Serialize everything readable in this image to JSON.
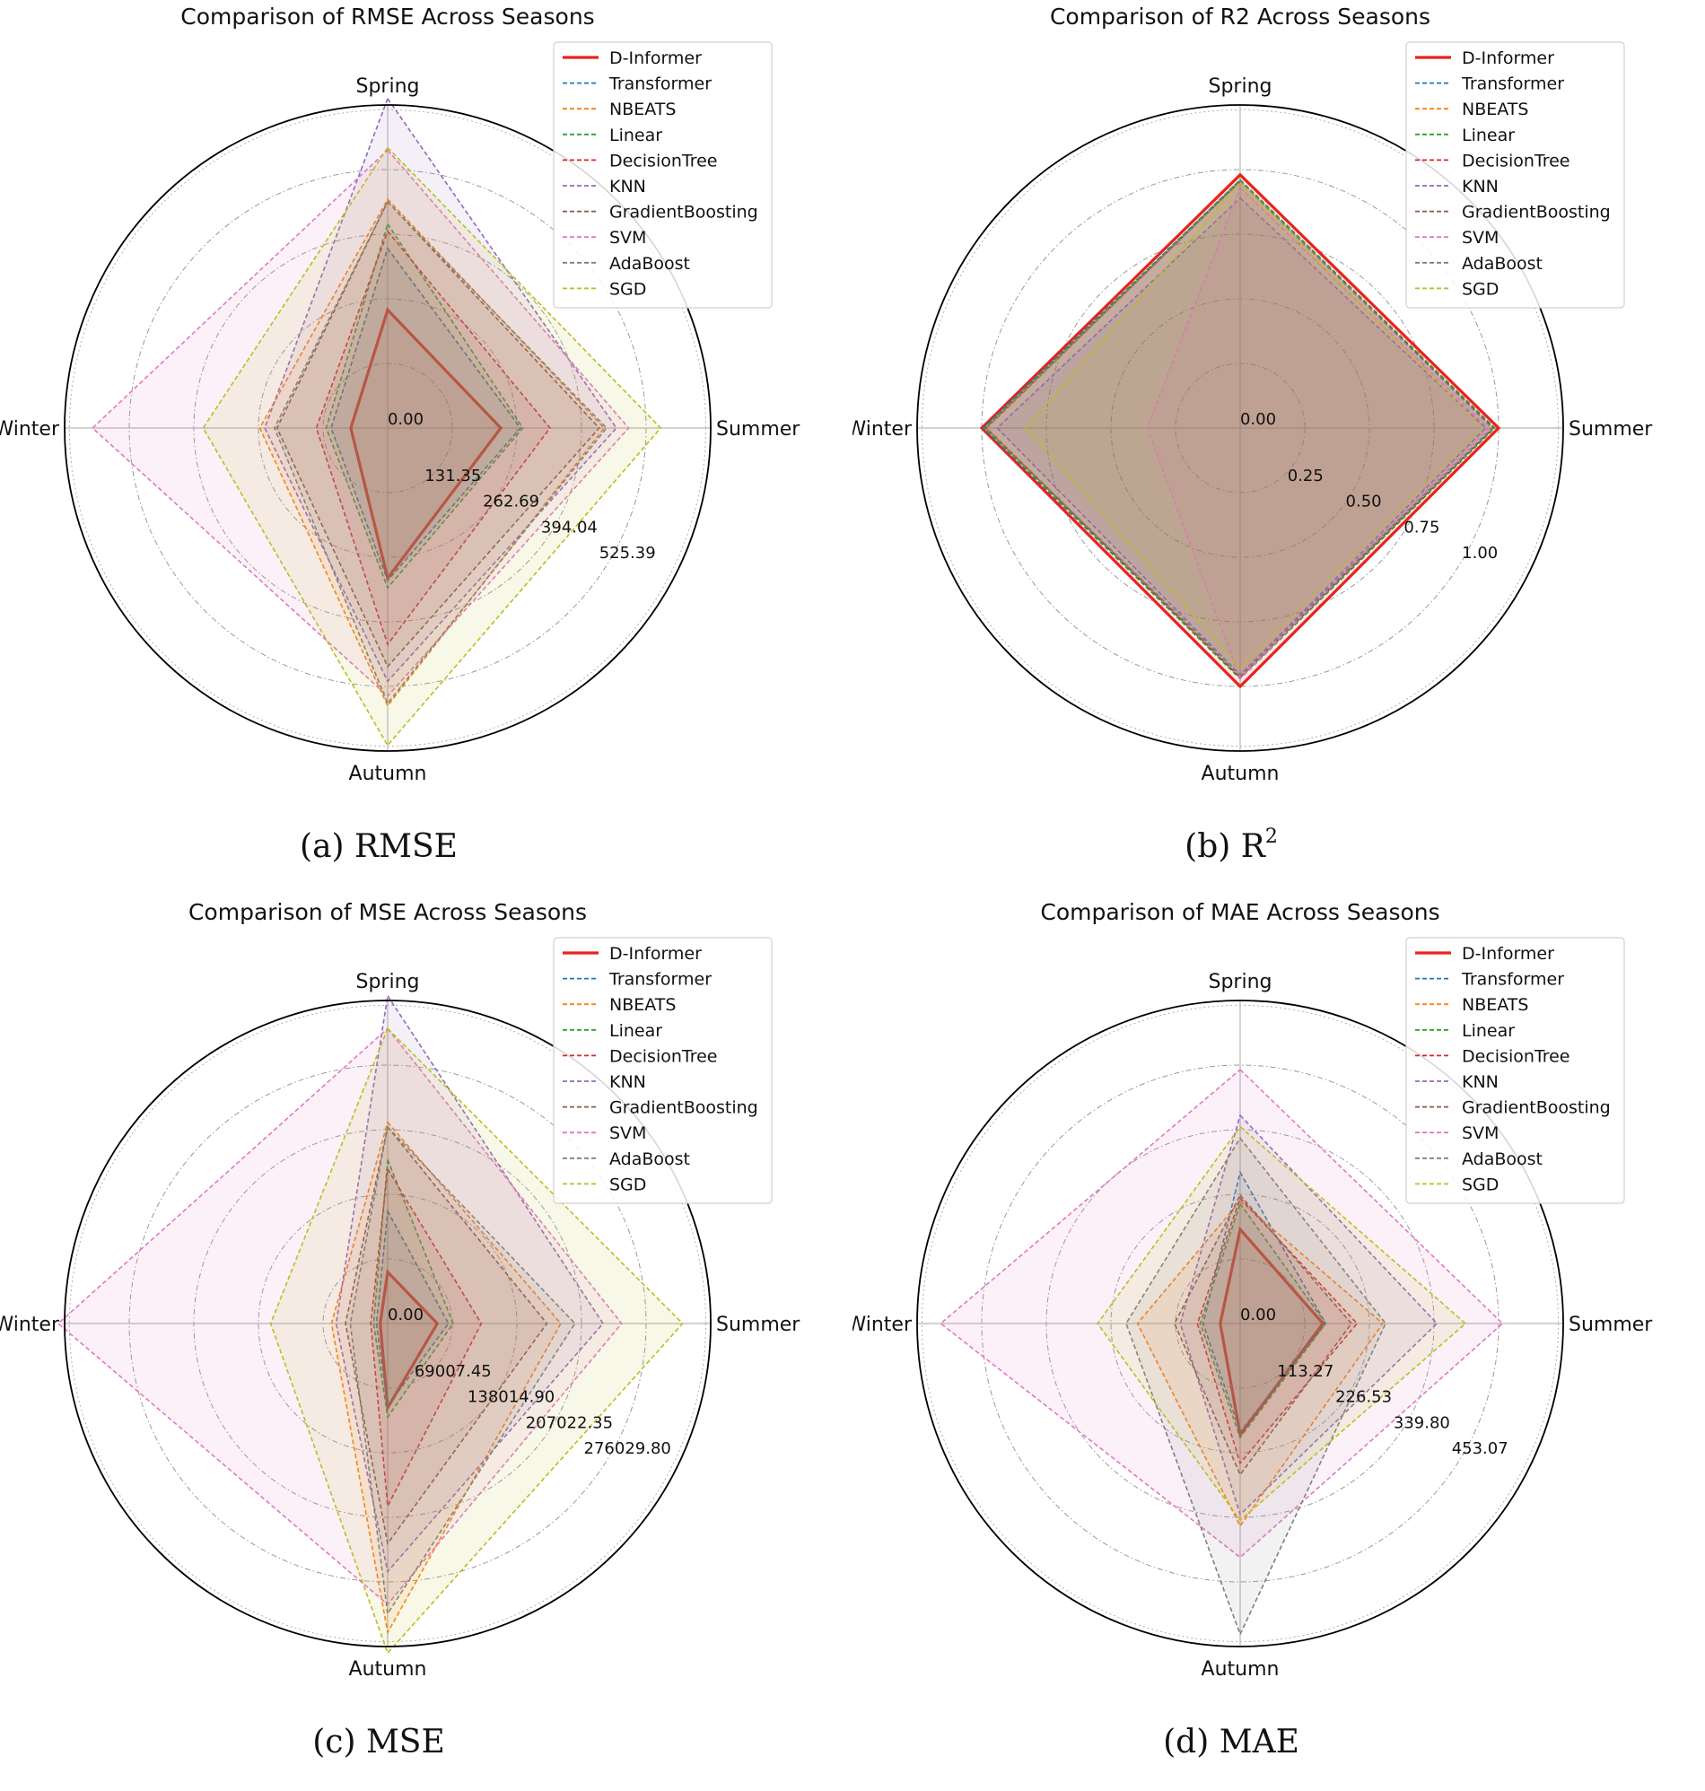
{
  "colors": {
    "D-Informer": "#e8231b",
    "Transformer": "#1f77b4",
    "NBEATS": "#ff7f0e",
    "Linear": "#2ca02c",
    "DecisionTree": "#d62728",
    "KNN": "#9467bd",
    "GradientBoosting": "#8c564b",
    "SVM": "#e377c2",
    "AdaBoost": "#7f7f7f",
    "SGD": "#bcbd22"
  },
  "chart_data": [
    {
      "type": "radar",
      "title": "Comparison of RMSE Across Seasons",
      "caption": "(a) RMSE",
      "caption_sup": "",
      "axes": [
        "Spring",
        "Summer",
        "Autumn",
        "Winter"
      ],
      "rmax": 656.74,
      "tick_values": [
        0,
        131.35,
        262.69,
        394.04,
        525.39
      ],
      "tick_labels": [
        "0.00",
        "131.35",
        "262.69",
        "394.04",
        "525.39"
      ],
      "legend_position": "top-right",
      "series": [
        {
          "name": "D-Informer",
          "values": [
            240,
            230,
            305,
            75
          ]
        },
        {
          "name": "Transformer",
          "values": [
            365,
            270,
            310,
            115
          ]
        },
        {
          "name": "NBEATS",
          "values": [
            465,
            440,
            565,
            260
          ]
        },
        {
          "name": "Linear",
          "values": [
            415,
            275,
            325,
            125
          ]
        },
        {
          "name": "DecisionTree",
          "values": [
            400,
            330,
            440,
            145
          ]
        },
        {
          "name": "KNN",
          "values": [
            675,
            465,
            515,
            250
          ]
        },
        {
          "name": "GradientBoosting",
          "values": [
            460,
            430,
            485,
            225
          ]
        },
        {
          "name": "SVM",
          "values": [
            565,
            490,
            545,
            600
          ]
        },
        {
          "name": "AdaBoost",
          "values": [
            460,
            445,
            560,
            230
          ]
        },
        {
          "name": "SGD",
          "values": [
            570,
            555,
            645,
            375
          ]
        }
      ]
    },
    {
      "type": "radar",
      "title": "Comparison of R2 Across Seasons",
      "caption": "(b) R",
      "caption_sup": "2",
      "axes": [
        "Spring",
        "Summer",
        "Autumn",
        "Winter"
      ],
      "rmax": 1.25,
      "tick_values": [
        0,
        0.25,
        0.5,
        0.75,
        1.0
      ],
      "tick_labels": [
        "0.00",
        "0.25",
        "0.50",
        "0.75",
        "1.00"
      ],
      "legend_position": "top-right",
      "series": [
        {
          "name": "D-Informer",
          "values": [
            0.98,
            1.0,
            1.0,
            1.0
          ]
        },
        {
          "name": "Transformer",
          "values": [
            0.96,
            0.985,
            0.97,
            0.995
          ]
        },
        {
          "name": "NBEATS",
          "values": [
            0.955,
            0.975,
            0.965,
            0.98
          ]
        },
        {
          "name": "Linear",
          "values": [
            0.96,
            0.985,
            0.97,
            0.99
          ]
        },
        {
          "name": "DecisionTree",
          "values": [
            0.955,
            0.98,
            0.965,
            0.985
          ]
        },
        {
          "name": "KNN",
          "values": [
            0.89,
            0.95,
            0.955,
            0.94
          ]
        },
        {
          "name": "GradientBoosting",
          "values": [
            0.955,
            0.98,
            0.965,
            0.985
          ]
        },
        {
          "name": "SVM",
          "values": [
            0.93,
            0.96,
            0.97,
            0.36
          ]
        },
        {
          "name": "AdaBoost",
          "values": [
            0.955,
            0.975,
            0.955,
            0.985
          ]
        },
        {
          "name": "SGD",
          "values": [
            0.95,
            0.94,
            0.93,
            0.83
          ]
        }
      ]
    },
    {
      "type": "radar",
      "title": "Comparison of MSE Across Seasons",
      "caption": "(c) MSE",
      "caption_sup": "",
      "axes": [
        "Spring",
        "Summer",
        "Autumn",
        "Winter"
      ],
      "rmax": 345037.25,
      "tick_values": [
        0,
        69007.45,
        138014.9,
        207022.35,
        276029.8
      ],
      "tick_labels": [
        "0.00",
        "69007.45",
        "138014.90",
        "207022.35",
        "276029.80"
      ],
      "legend_position": "top-right",
      "series": [
        {
          "name": "D-Informer",
          "values": [
            55000,
            53000,
            90000,
            8000
          ]
        },
        {
          "name": "Transformer",
          "values": [
            120000,
            65000,
            88000,
            12000
          ]
        },
        {
          "name": "NBEATS",
          "values": [
            215000,
            185000,
            330000,
            60000
          ]
        },
        {
          "name": "Linear",
          "values": [
            175000,
            70000,
            100000,
            15000
          ]
        },
        {
          "name": "DecisionTree",
          "values": [
            165000,
            100000,
            195000,
            18000
          ]
        },
        {
          "name": "KNN",
          "values": [
            350000,
            230000,
            265000,
            55000
          ]
        },
        {
          "name": "GradientBoosting",
          "values": [
            210000,
            170000,
            235000,
            45000
          ]
        },
        {
          "name": "SVM",
          "values": [
            315000,
            250000,
            300000,
            360000
          ]
        },
        {
          "name": "AdaBoost",
          "values": [
            210000,
            200000,
            310000,
            40000
          ]
        },
        {
          "name": "SGD",
          "values": [
            315000,
            315000,
            400000,
            125000
          ]
        }
      ]
    },
    {
      "type": "radar",
      "title": "Comparison of MAE Across Seasons",
      "caption": "(d) MAE",
      "caption_sup": "",
      "axes": [
        "Spring",
        "Summer",
        "Autumn",
        "Winter"
      ],
      "rmax": 566.34,
      "tick_values": [
        0,
        113.27,
        226.53,
        339.8,
        453.07
      ],
      "tick_labels": [
        "0.00",
        "113.27",
        "226.53",
        "339.80",
        "453.07"
      ],
      "legend_position": "top-right",
      "series": [
        {
          "name": "D-Informer",
          "values": [
            165,
            145,
            195,
            35
          ]
        },
        {
          "name": "Transformer",
          "values": [
            265,
            150,
            190,
            65
          ]
        },
        {
          "name": "NBEATS",
          "values": [
            215,
            250,
            355,
            180
          ]
        },
        {
          "name": "Linear",
          "values": [
            210,
            150,
            200,
            70
          ]
        },
        {
          "name": "DecisionTree",
          "values": [
            220,
            205,
            245,
            75
          ]
        },
        {
          "name": "KNN",
          "values": [
            365,
            345,
            335,
            105
          ]
        },
        {
          "name": "GradientBoosting",
          "values": [
            225,
            195,
            265,
            115
          ]
        },
        {
          "name": "SVM",
          "values": [
            445,
            460,
            410,
            525
          ]
        },
        {
          "name": "AdaBoost",
          "values": [
            325,
            255,
            545,
            200
          ]
        },
        {
          "name": "SGD",
          "values": [
            345,
            395,
            345,
            250
          ]
        }
      ]
    }
  ]
}
